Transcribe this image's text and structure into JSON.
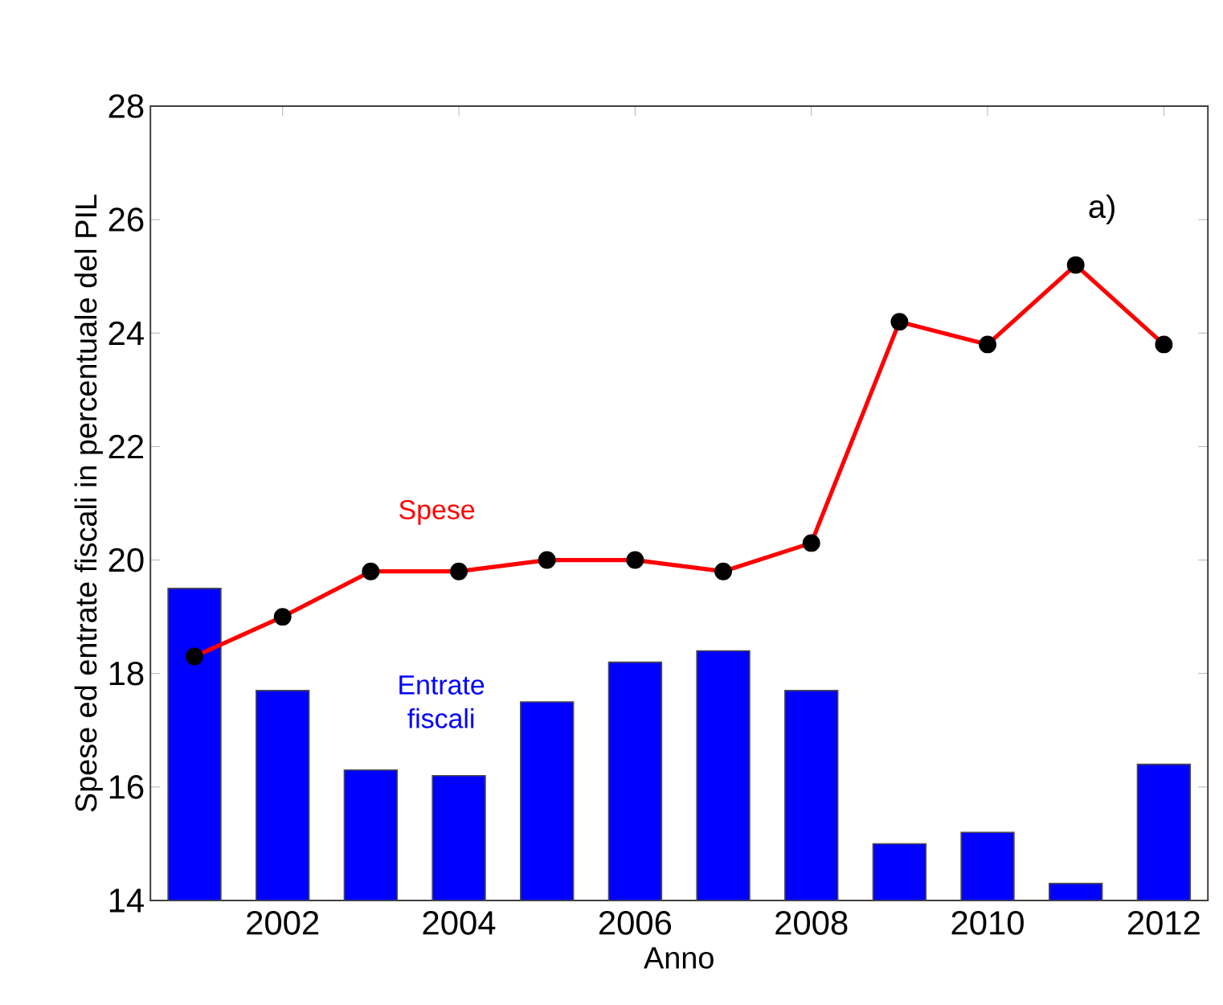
{
  "chart_data": {
    "type": "bar",
    "xlabel": "Anno",
    "ylabel": "Spese ed entrate fiscali in percentuale del PIL",
    "x": [
      2001,
      2002,
      2003,
      2004,
      2005,
      2006,
      2007,
      2008,
      2009,
      2010,
      2011,
      2012
    ],
    "series": [
      {
        "name": "Entrate fiscali",
        "color": "#0000ff",
        "values": [
          19.5,
          17.7,
          16.3,
          16.2,
          17.5,
          18.2,
          18.4,
          17.7,
          15.0,
          15.2,
          14.3,
          16.4
        ]
      },
      {
        "name": "Spese",
        "type": "line",
        "color": "#ff0000",
        "marker": "circle",
        "values": [
          18.3,
          19.0,
          19.8,
          19.8,
          20.0,
          20.0,
          19.8,
          20.3,
          24.2,
          23.8,
          25.2,
          23.8
        ]
      }
    ],
    "xlim": [
      2000.5,
      2012.5
    ],
    "ylim": [
      14,
      28
    ],
    "xticks": [
      2002,
      2004,
      2006,
      2008,
      2010,
      2012
    ],
    "yticks": [
      14,
      16,
      18,
      20,
      22,
      24,
      26,
      28
    ],
    "annotations": [
      "a)"
    ],
    "grid": false,
    "legend": false
  }
}
